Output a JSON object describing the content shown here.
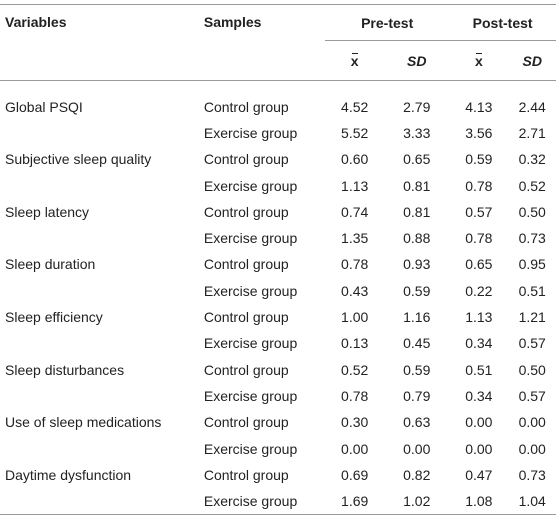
{
  "headers": {
    "variables": "Variables",
    "samples": "Samples",
    "pre_test": "Pre-test",
    "post_test": "Post-test",
    "mean_symbol": "x",
    "sd": "SD"
  },
  "rows": [
    {
      "variable": "Global PSQI",
      "sample": "Control group",
      "pre_mean": "4.52",
      "pre_sd": "2.79",
      "post_mean": "4.13",
      "post_sd": "2.44"
    },
    {
      "variable": "",
      "sample": "Exercise group",
      "pre_mean": "5.52",
      "pre_sd": "3.33",
      "post_mean": "3.56",
      "post_sd": "2.71"
    },
    {
      "variable": "Subjective sleep quality",
      "sample": "Control group",
      "pre_mean": "0.60",
      "pre_sd": "0.65",
      "post_mean": "0.59",
      "post_sd": "0.32"
    },
    {
      "variable": "",
      "sample": "Exercise group",
      "pre_mean": "1.13",
      "pre_sd": "0.81",
      "post_mean": "0.78",
      "post_sd": "0.52"
    },
    {
      "variable": "Sleep latency",
      "sample": "Control group",
      "pre_mean": "0.74",
      "pre_sd": "0.81",
      "post_mean": "0.57",
      "post_sd": "0.50"
    },
    {
      "variable": "",
      "sample": "Exercise group",
      "pre_mean": "1.35",
      "pre_sd": "0.88",
      "post_mean": "0.78",
      "post_sd": "0.73"
    },
    {
      "variable": "Sleep duration",
      "sample": "Control group",
      "pre_mean": "0.78",
      "pre_sd": "0.93",
      "post_mean": "0.65",
      "post_sd": "0.95"
    },
    {
      "variable": "",
      "sample": "Exercise group",
      "pre_mean": "0.43",
      "pre_sd": "0.59",
      "post_mean": "0.22",
      "post_sd": "0.51"
    },
    {
      "variable": "Sleep efficiency",
      "sample": "Control group",
      "pre_mean": "1.00",
      "pre_sd": "1.16",
      "post_mean": "1.13",
      "post_sd": "1.21"
    },
    {
      "variable": "",
      "sample": "Exercise group",
      "pre_mean": "0.13",
      "pre_sd": "0.45",
      "post_mean": "0.34",
      "post_sd": "0.57"
    },
    {
      "variable": "Sleep disturbances",
      "sample": "Control group",
      "pre_mean": "0.52",
      "pre_sd": "0.59",
      "post_mean": "0.51",
      "post_sd": "0.50"
    },
    {
      "variable": "",
      "sample": "Exercise group",
      "pre_mean": "0.78",
      "pre_sd": "0.79",
      "post_mean": "0.34",
      "post_sd": "0.57"
    },
    {
      "variable": "Use of sleep medications",
      "sample": "Control group",
      "pre_mean": "0.30",
      "pre_sd": "0.63",
      "post_mean": "0.00",
      "post_sd": "0.00"
    },
    {
      "variable": "",
      "sample": "Exercise group",
      "pre_mean": "0.00",
      "pre_sd": "0.00",
      "post_mean": "0.00",
      "post_sd": "0.00"
    },
    {
      "variable": "Daytime dysfunction",
      "sample": "Control group",
      "pre_mean": "0.69",
      "pre_sd": "0.82",
      "post_mean": "0.47",
      "post_sd": "0.73"
    },
    {
      "variable": "",
      "sample": "Exercise group",
      "pre_mean": "1.69",
      "pre_sd": "1.02",
      "post_mean": "1.08",
      "post_sd": "1.04"
    }
  ]
}
